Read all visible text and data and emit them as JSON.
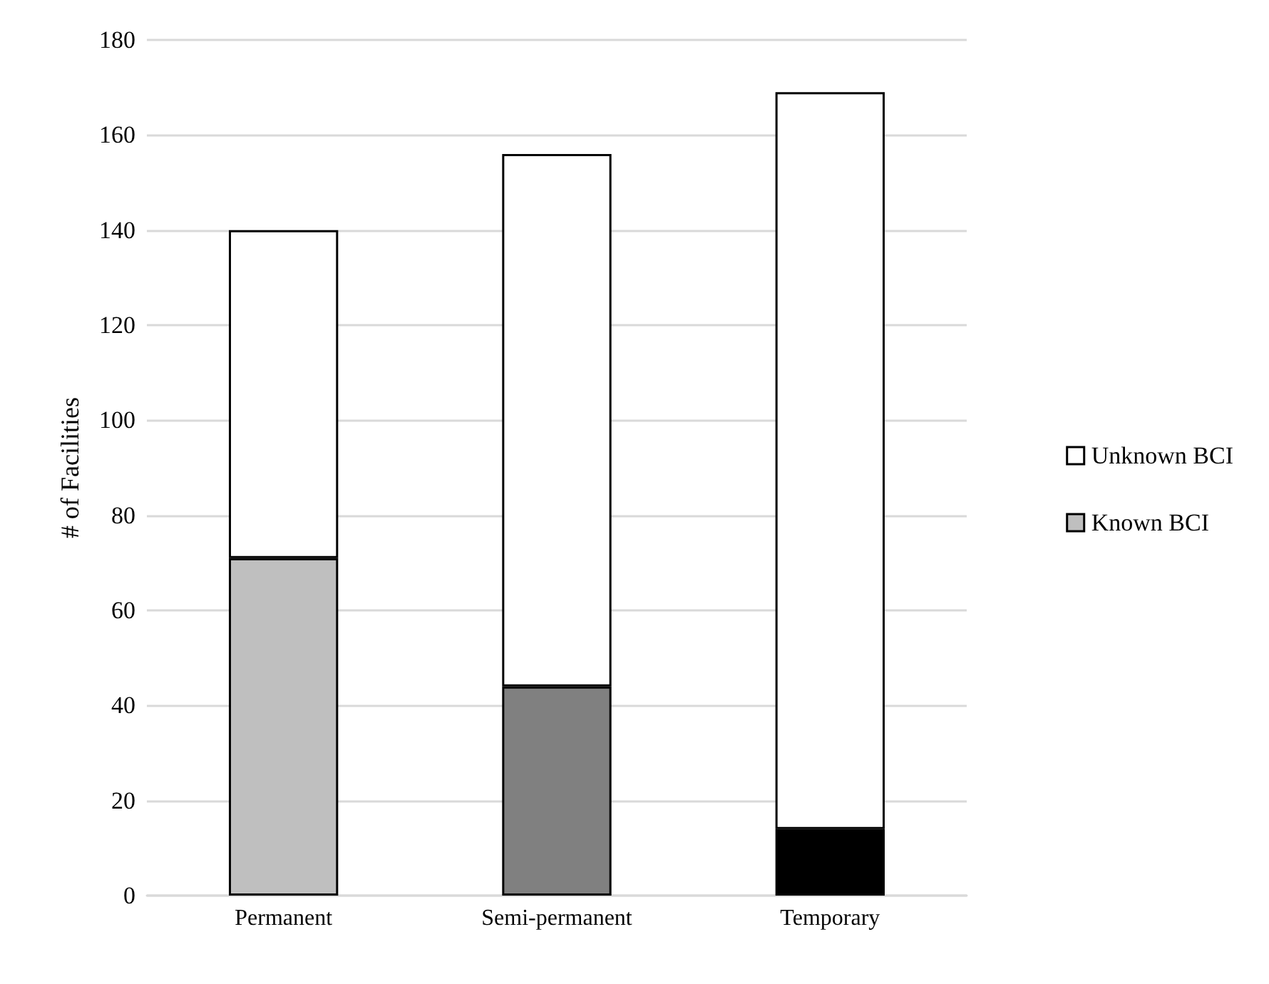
{
  "chart_data": {
    "type": "bar",
    "stacked": true,
    "ylabel": "# of Facilities",
    "categories": [
      "Permanent",
      "Semi-permanent",
      "Temporary"
    ],
    "series": [
      {
        "name": "Known BCI",
        "color": "#bfbfbf",
        "colors": [
          "#bfbfbf",
          "#808080",
          "#000000"
        ],
        "values": [
          71,
          44,
          14
        ]
      },
      {
        "name": "Unknown BCI",
        "color": "#ffffff",
        "values": [
          69,
          112,
          155
        ]
      }
    ],
    "ylim": [
      0,
      180
    ],
    "yticks": [
      0,
      20,
      40,
      60,
      80,
      100,
      120,
      140,
      160,
      180
    ],
    "grid": "y",
    "legend": "right"
  }
}
